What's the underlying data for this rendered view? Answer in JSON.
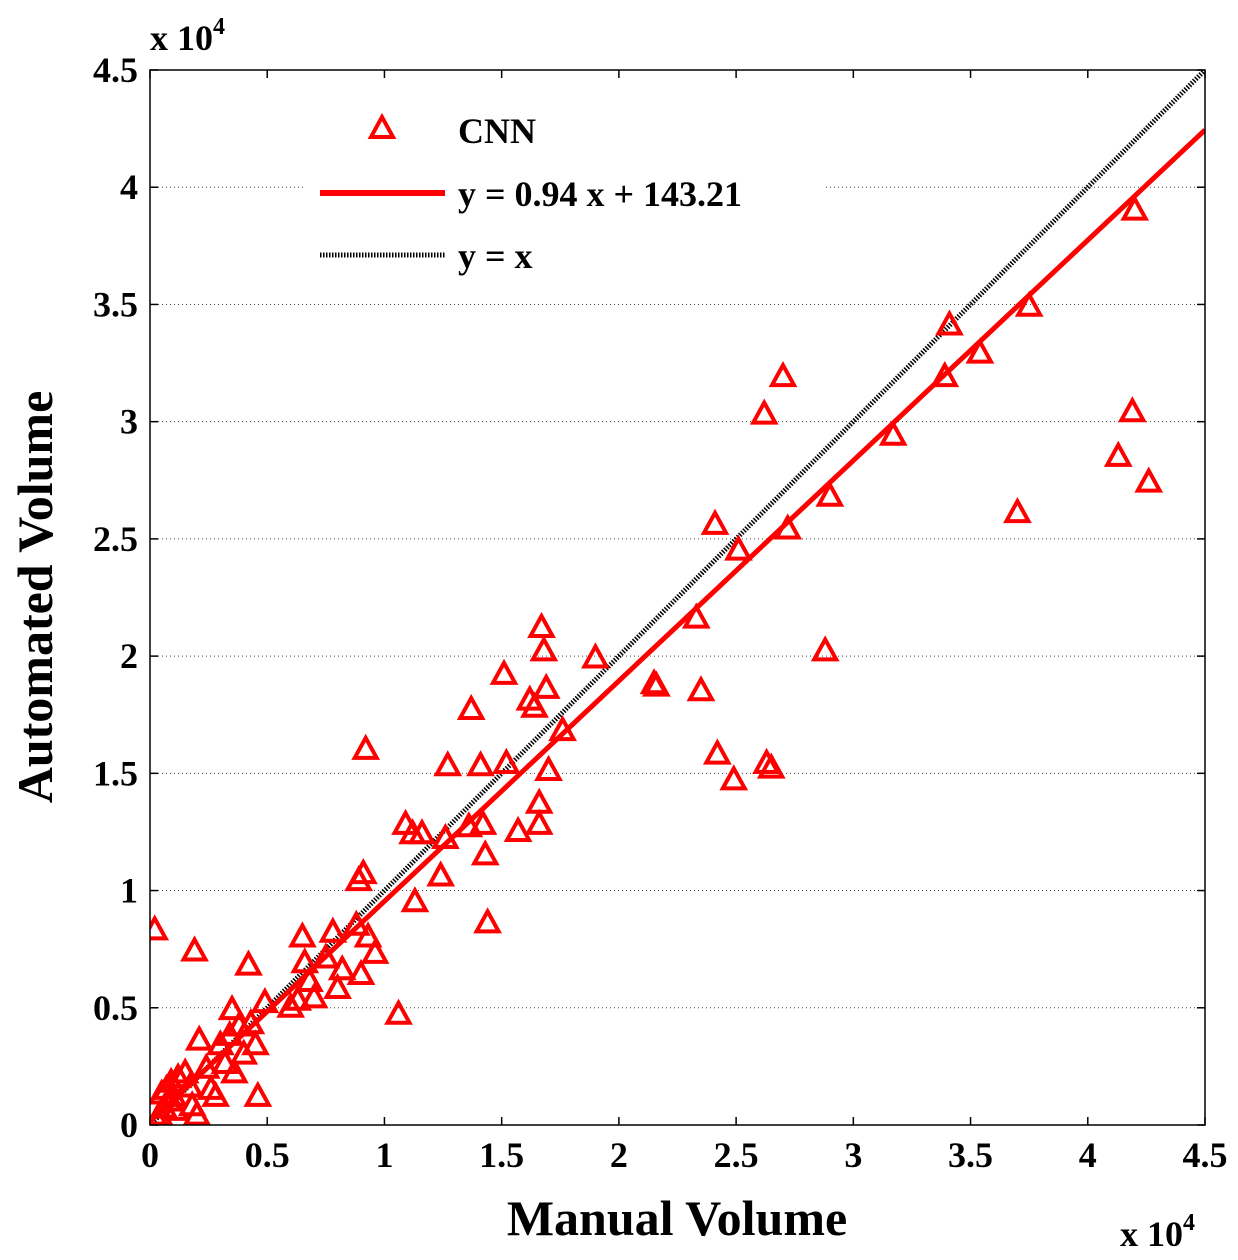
{
  "chart_data": {
    "type": "scatter",
    "xlabel": "Manual Volume",
    "ylabel": "Automated Volume",
    "x_exponent_label": "x 10",
    "x_exponent_power": "4",
    "y_exponent_label": "x 10",
    "y_exponent_power": "4",
    "xlim": [
      0,
      45000
    ],
    "ylim": [
      0,
      45000
    ],
    "xticks": [
      0,
      5000,
      10000,
      15000,
      20000,
      25000,
      30000,
      35000,
      40000,
      45000
    ],
    "yticks": [
      0,
      5000,
      10000,
      15000,
      20000,
      25000,
      30000,
      35000,
      40000,
      45000
    ],
    "xtick_labels": [
      "0",
      "0.5",
      "1",
      "1.5",
      "2",
      "2.5",
      "3",
      "3.5",
      "4",
      "4.5"
    ],
    "ytick_labels": [
      "0",
      "0.5",
      "1",
      "1.5",
      "2",
      "2.5",
      "3",
      "3.5",
      "4",
      "4.5"
    ],
    "grid": "horizontal",
    "legend": {
      "position": "top-left",
      "entries": [
        "CNN",
        "y = 0.94 x + 143.21",
        "y = x"
      ]
    },
    "series": [
      {
        "name": "CNN",
        "kind": "scatter",
        "marker": "triangle",
        "color": "#ff0000",
        "points": [
          [
            300,
            200
          ],
          [
            400,
            400
          ],
          [
            600,
            700
          ],
          [
            800,
            1000
          ],
          [
            500,
            1300
          ],
          [
            700,
            1500
          ],
          [
            900,
            1800
          ],
          [
            1000,
            1200
          ],
          [
            1100,
            600
          ],
          [
            1200,
            2000
          ],
          [
            1500,
            2200
          ],
          [
            1700,
            1600
          ],
          [
            1800,
            800
          ],
          [
            2000,
            400
          ],
          [
            2100,
            3600
          ],
          [
            2400,
            2400
          ],
          [
            2600,
            1500
          ],
          [
            2800,
            1200
          ],
          [
            3000,
            3400
          ],
          [
            3200,
            2600
          ],
          [
            3400,
            3800
          ],
          [
            3500,
            4900
          ],
          [
            3600,
            2200
          ],
          [
            3800,
            4200
          ],
          [
            4000,
            3000
          ],
          [
            4200,
            6800
          ],
          [
            4300,
            4300
          ],
          [
            4500,
            3400
          ],
          [
            4600,
            1200
          ],
          [
            4900,
            5200
          ],
          [
            200,
            8300
          ],
          [
            1900,
            7400
          ],
          [
            6000,
            5000
          ],
          [
            6300,
            5300
          ],
          [
            6500,
            8000
          ],
          [
            6600,
            6900
          ],
          [
            6800,
            6100
          ],
          [
            7000,
            5400
          ],
          [
            7500,
            7100
          ],
          [
            7800,
            8200
          ],
          [
            8000,
            5800
          ],
          [
            8200,
            6600
          ],
          [
            8800,
            8500
          ],
          [
            8900,
            10400
          ],
          [
            9100,
            10700
          ],
          [
            9000,
            6400
          ],
          [
            9300,
            8000
          ],
          [
            9600,
            7300
          ],
          [
            9200,
            16000
          ],
          [
            10600,
            4700
          ],
          [
            10900,
            12800
          ],
          [
            11200,
            12400
          ],
          [
            11300,
            9500
          ],
          [
            11600,
            12400
          ],
          [
            12400,
            10600
          ],
          [
            12600,
            12200
          ],
          [
            12700,
            15300
          ],
          [
            13600,
            12700
          ],
          [
            13700,
            17700
          ],
          [
            14100,
            15300
          ],
          [
            14200,
            12800
          ],
          [
            14300,
            11500
          ],
          [
            14400,
            8600
          ],
          [
            15100,
            19200
          ],
          [
            15200,
            15400
          ],
          [
            15700,
            12500
          ],
          [
            16200,
            18100
          ],
          [
            16400,
            17800
          ],
          [
            16600,
            13700
          ],
          [
            16600,
            12800
          ],
          [
            16700,
            21200
          ],
          [
            16800,
            20200
          ],
          [
            16900,
            18600
          ],
          [
            17000,
            15100
          ],
          [
            17600,
            16800
          ],
          [
            19000,
            19900
          ],
          [
            21500,
            18800
          ],
          [
            21600,
            18700
          ],
          [
            23300,
            21600
          ],
          [
            23500,
            18500
          ],
          [
            24100,
            25600
          ],
          [
            24200,
            15800
          ],
          [
            24900,
            14700
          ],
          [
            25100,
            24500
          ],
          [
            26200,
            30300
          ],
          [
            26300,
            15400
          ],
          [
            26500,
            15200
          ],
          [
            27000,
            31900
          ],
          [
            27200,
            25400
          ],
          [
            28800,
            20200
          ],
          [
            29000,
            26800
          ],
          [
            31700,
            29400
          ],
          [
            33900,
            31900
          ],
          [
            34100,
            34100
          ],
          [
            35400,
            32900
          ],
          [
            37000,
            26100
          ],
          [
            37500,
            34900
          ],
          [
            41300,
            28500
          ],
          [
            41900,
            30400
          ],
          [
            42000,
            39000
          ],
          [
            42600,
            27400
          ]
        ]
      },
      {
        "name": "y = 0.94 x + 143.21",
        "kind": "line",
        "slope": 0.94,
        "intercept": 143.21,
        "color": "#ff0000"
      },
      {
        "name": "y = x",
        "kind": "line",
        "slope": 1,
        "intercept": 0,
        "color": "#000000"
      }
    ]
  }
}
